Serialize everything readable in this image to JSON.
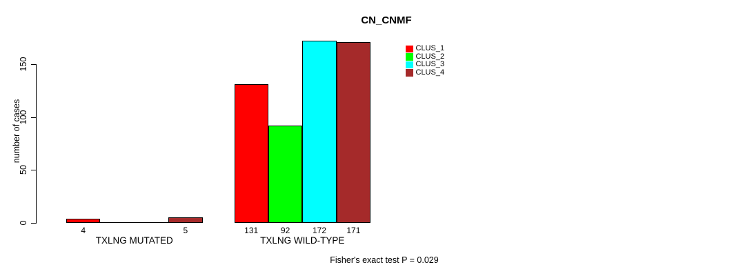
{
  "chart_data": {
    "type": "bar",
    "title": "CN_CNMF",
    "ylabel": "number of cases",
    "xlabel": "",
    "yticks": [
      0,
      50,
      100,
      150
    ],
    "ylim": [
      0,
      176
    ],
    "grid": false,
    "legend_position": "top-right",
    "categories": [
      "TXLNG MUTATED",
      "TXLNG WILD-TYPE"
    ],
    "series": [
      {
        "name": "CLUS_1",
        "color": "#ff0000",
        "values": [
          4,
          131
        ]
      },
      {
        "name": "CLUS_2",
        "color": "#00ff00",
        "values": [
          0,
          92
        ]
      },
      {
        "name": "CLUS_3",
        "color": "#00ffff",
        "values": [
          0,
          172
        ]
      },
      {
        "name": "CLUS_4",
        "color": "#a52a2a",
        "values": [
          5,
          171
        ]
      }
    ],
    "bar_outline_color": "#000000",
    "annotation": "Fisher's exact test P = 0.029"
  }
}
